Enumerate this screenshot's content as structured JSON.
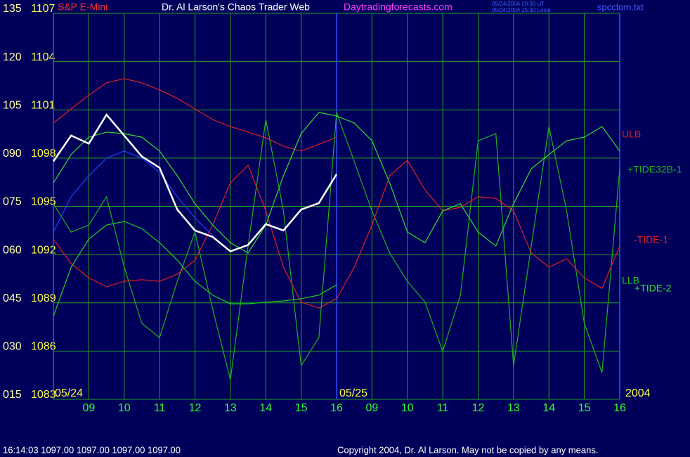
{
  "chart_data": {
    "type": "line",
    "title": "Dr. Al Larson's Chaos Trader Web",
    "subtitle": "S&P E-Mini",
    "site": "Daytradingforecasts.com",
    "timestamps": [
      "05/24/2004 20:30 UT",
      "05/24/2004 15:30 Local"
    ],
    "file": "spcctom.txt",
    "date_labels": [
      "05/24",
      "05/25",
      "2004"
    ],
    "status": "16:14:03  1097.00 1097.00 1097.00 1097.00",
    "copyright": "Copyright 2004, Dr. Al Larson. May not be copied by any means.",
    "x": [
      0,
      0.5,
      1,
      1.5,
      2,
      2.5,
      3,
      3.5,
      4,
      4.5,
      5,
      5.5,
      6,
      6.5,
      7,
      7.5,
      8,
      8.5,
      9,
      9.5,
      10,
      10.5,
      11,
      11.5,
      12,
      12.5,
      13,
      13.5,
      14,
      14.5,
      15,
      15.5,
      16
    ],
    "xlim": [
      0,
      16
    ],
    "xticks": [
      {
        "value": 1,
        "label": "09"
      },
      {
        "value": 2,
        "label": "10"
      },
      {
        "value": 3,
        "label": "11"
      },
      {
        "value": 4,
        "label": "12"
      },
      {
        "value": 5,
        "label": "13"
      },
      {
        "value": 6,
        "label": "14"
      },
      {
        "value": 7,
        "label": "15"
      },
      {
        "value": 8,
        "label": "16"
      },
      {
        "value": 9,
        "label": "09"
      },
      {
        "value": 10,
        "label": "10"
      },
      {
        "value": 11,
        "label": "11"
      },
      {
        "value": 12,
        "label": "12"
      },
      {
        "value": 13,
        "label": "13"
      },
      {
        "value": 14,
        "label": "14"
      },
      {
        "value": 15,
        "label": "15"
      },
      {
        "value": 16,
        "label": "16"
      }
    ],
    "ylim": [
      15,
      135
    ],
    "yticks": [
      {
        "value": 15,
        "label": "015"
      },
      {
        "value": 30,
        "label": "030"
      },
      {
        "value": 45,
        "label": "045"
      },
      {
        "value": 60,
        "label": "060"
      },
      {
        "value": 75,
        "label": "075"
      },
      {
        "value": 90,
        "label": "090"
      },
      105,
      120,
      135
    ],
    "y2lim": [
      1083,
      1107
    ],
    "y2ticks": [
      1083,
      1086,
      1089,
      1092,
      1095,
      1098,
      1101,
      1104,
      1107
    ],
    "grid": true,
    "series": [
      {
        "name": "ULB",
        "color": "#e02020",
        "values": [
          100.9,
          105.3,
          109.6,
          113.4,
          114.7,
          113.4,
          111.2,
          108.6,
          105.3,
          102.0,
          99.8,
          98.1,
          96.3,
          93.7,
          92.2,
          94.3,
          96.5,
          null,
          null,
          null,
          null,
          null,
          null,
          null,
          null,
          null,
          null,
          null,
          null,
          null,
          null,
          null,
          null
        ]
      },
      {
        "name": "+TIDE32B-1",
        "color": "#20b020",
        "values": [
          75.8,
          67.0,
          69.2,
          78.0,
          56.1,
          38.6,
          34.2,
          51.7,
          67.0,
          43.0,
          21.1,
          62.7,
          102.0,
          73.6,
          25.5,
          34.2,
          104.2,
          88.9,
          73.6,
          60.5,
          51.7,
          45.2,
          29.9,
          47.4,
          95.4,
          97.6,
          25.5,
          62.7,
          99.8,
          73.6,
          38.6,
          23.3,
          86.7
        ]
      },
      {
        "name": "-TIDE-1",
        "color": "#e02020",
        "values": [
          64.8,
          57.2,
          52.8,
          50.0,
          51.7,
          52.2,
          51.7,
          53.9,
          58.3,
          69.2,
          82.3,
          87.8,
          73.6,
          56.1,
          45.2,
          43.4,
          46.3,
          56.1,
          69.2,
          84.5,
          89.3,
          80.1,
          73.6,
          74.7,
          78.0,
          77.5,
          73.6,
          60.5,
          56.1,
          58.7,
          52.8,
          49.5,
          62.7
        ]
      },
      {
        "name": "LLB",
        "color": "#20d020",
        "values": [
          40.8,
          56.1,
          64.8,
          69.2,
          70.3,
          68.1,
          63.7,
          58.3,
          51.7,
          47.4,
          44.7,
          44.7,
          45.2,
          45.6,
          46.3,
          47.4,
          50.6,
          null,
          null,
          null,
          null,
          null,
          null,
          null,
          null,
          null,
          null,
          null,
          null,
          null,
          null,
          null,
          null
        ]
      },
      {
        "name": "+TIDE-2",
        "color": "#30e030",
        "values": [
          82.3,
          91.1,
          96.5,
          98.1,
          97.6,
          96.5,
          92.2,
          84.5,
          75.8,
          69.2,
          63.7,
          60.5,
          69.2,
          84.5,
          97.6,
          104.2,
          103.1,
          100.9,
          95.4,
          82.3,
          67.0,
          63.7,
          73.6,
          75.8,
          67.0,
          62.7,
          75.8,
          86.7,
          91.1,
          95.4,
          96.5,
          99.8,
          92.2
        ]
      },
      {
        "color": "#2040ff",
        "values": [
          67.0,
          78.0,
          84.5,
          90.0,
          92.2,
          90.0,
          85.6,
          78.0,
          71.4,
          65.9,
          null,
          null,
          null,
          null,
          null,
          null,
          null,
          null,
          null,
          null,
          null,
          null,
          null,
          null,
          null,
          null,
          null,
          null,
          null,
          null,
          null,
          null,
          null
        ]
      },
      {
        "color": "#ffffff",
        "axis": "y2",
        "values": [
          1097.8,
          1099.4,
          1098.9,
          1100.7,
          1099.4,
          1098.1,
          1097.4,
          1094.8,
          1093.5,
          1093.1,
          1092.2,
          1092.6,
          1093.9,
          1093.5,
          1094.8,
          1095.2,
          1097.0,
          null,
          null,
          null,
          null,
          null,
          null,
          null,
          null,
          null,
          null,
          null,
          null,
          null,
          null,
          null,
          null
        ]
      }
    ]
  }
}
